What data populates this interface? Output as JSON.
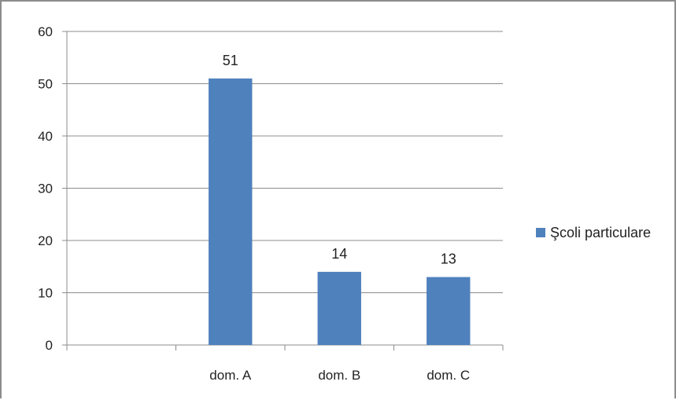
{
  "chart_data": {
    "type": "bar",
    "categories": [
      "",
      "dom. A",
      "dom. B",
      "dom. C"
    ],
    "series": [
      {
        "name": "Şcoli particulare",
        "values": [
          null,
          51,
          14,
          13
        ],
        "color": "#4f81bd"
      }
    ],
    "y_ticks": [
      "0",
      "10",
      "20",
      "30",
      "40",
      "50",
      "60"
    ],
    "ylim": [
      0,
      60
    ],
    "grid": true,
    "legend_position": "right",
    "data_labels": true
  }
}
